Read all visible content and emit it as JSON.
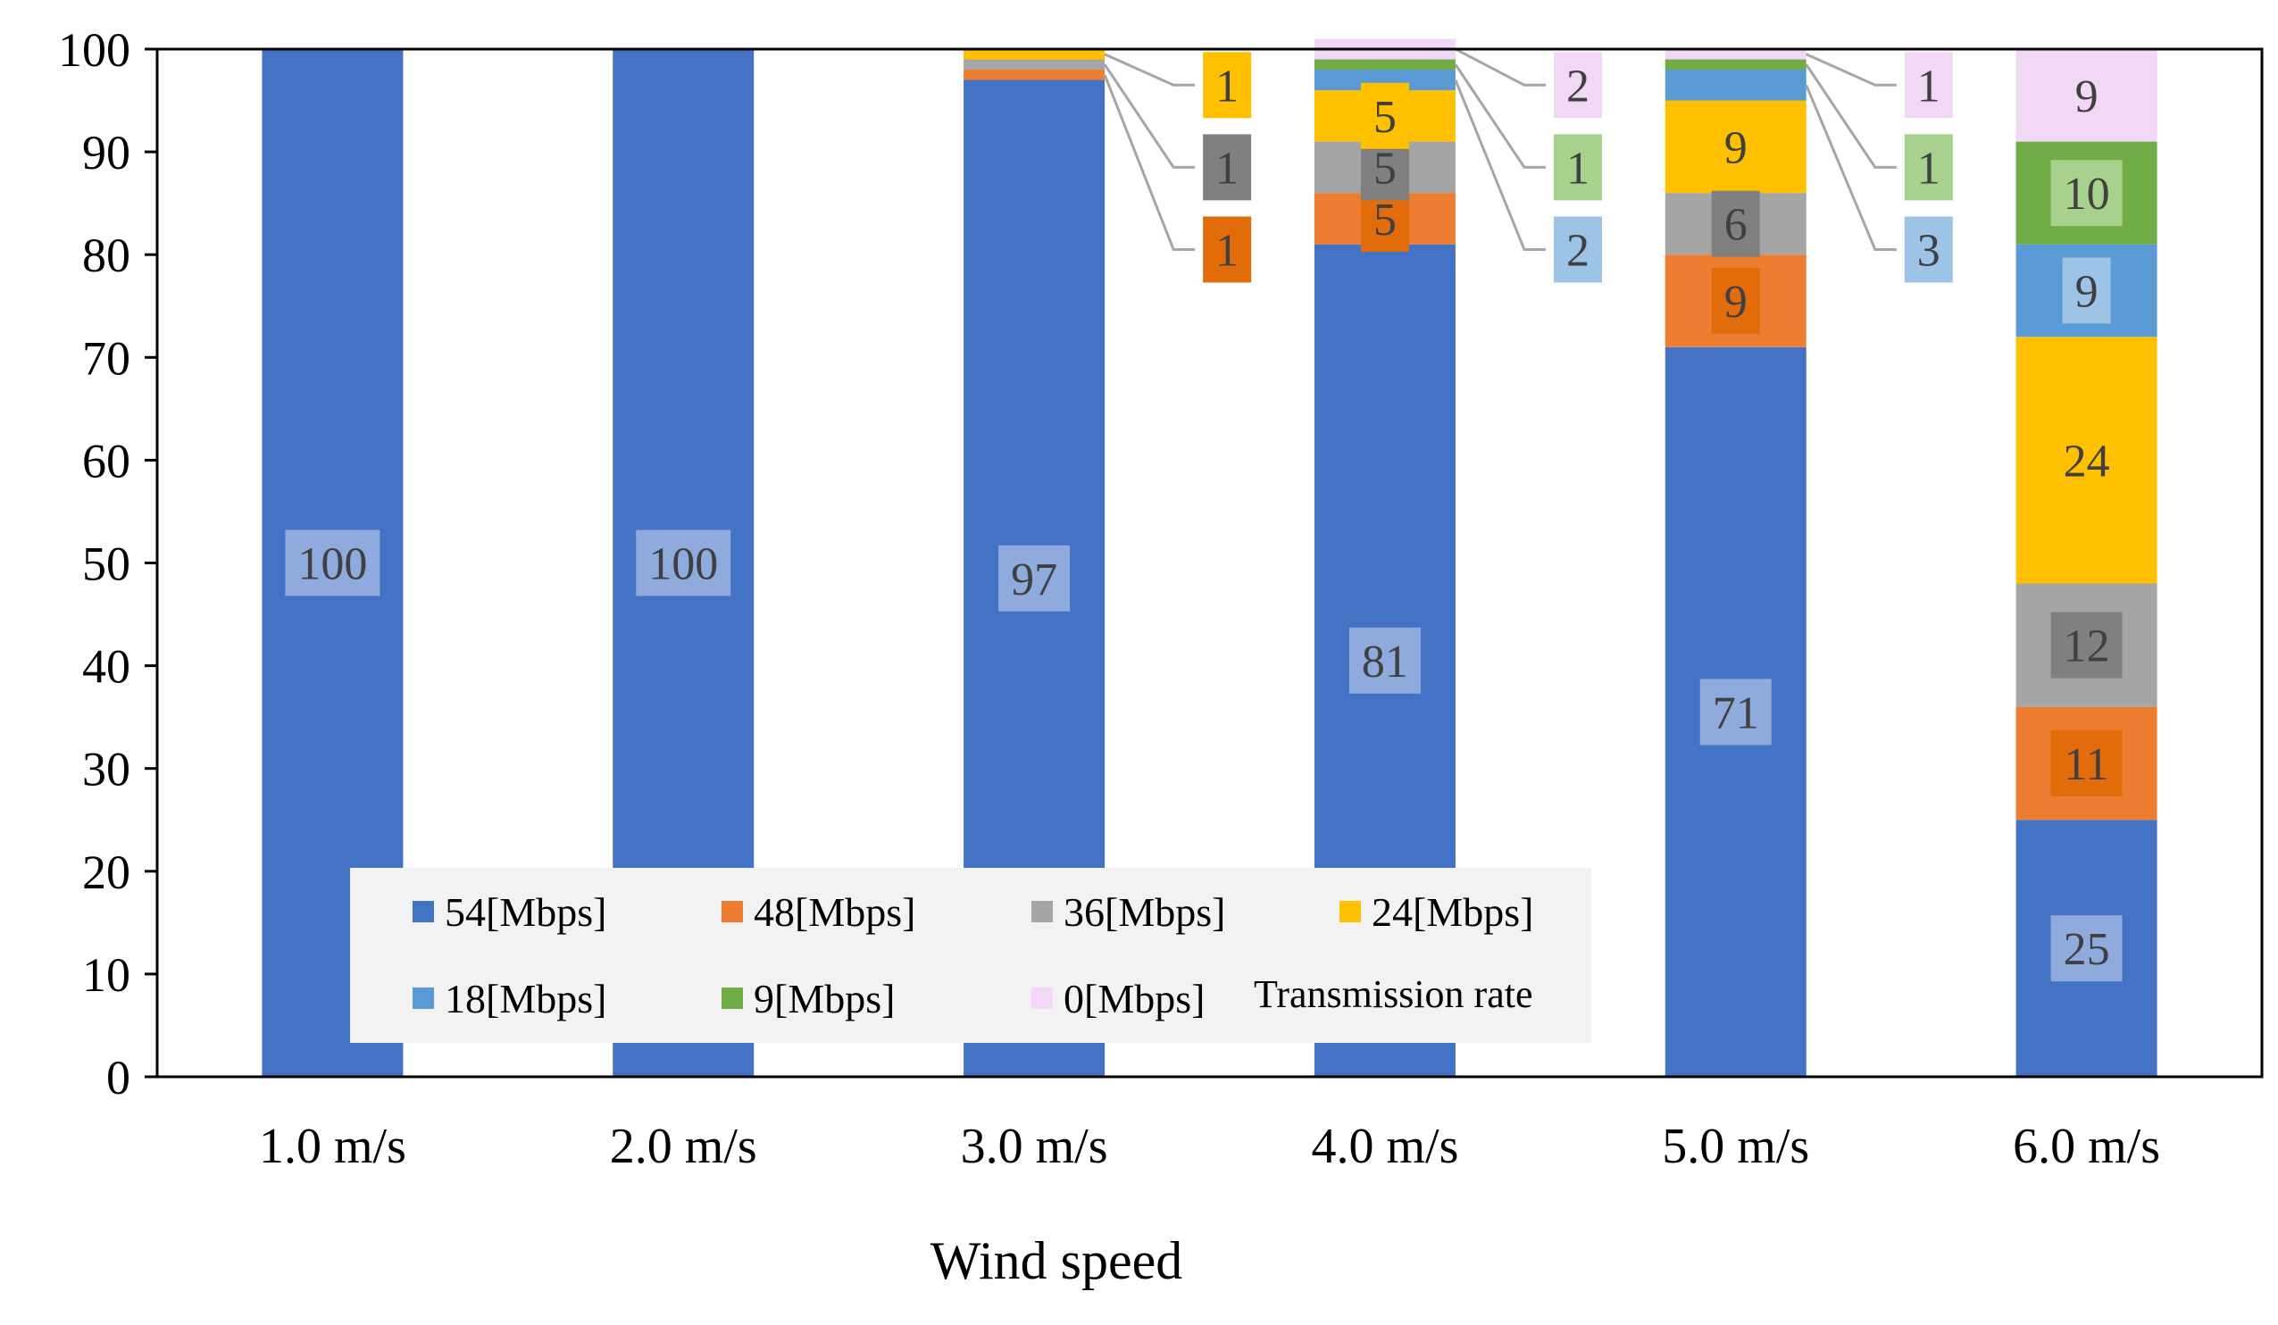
{
  "chart_data": {
    "type": "bar",
    "stacked": true,
    "title": "",
    "xlabel": "Wind speed",
    "ylabel": "",
    "ylim": [
      0,
      100
    ],
    "yticks": [
      0,
      10,
      20,
      30,
      40,
      50,
      60,
      70,
      80,
      90,
      100
    ],
    "categories": [
      "1.0 m/s",
      "2.0 m/s",
      "3.0 m/s",
      "4.0 m/s",
      "5.0 m/s",
      "6.0 m/s"
    ],
    "series": [
      {
        "name": "54[Mbps]",
        "color": "#4472C4",
        "label_bg": "#8FAADC",
        "label_color": "#404040",
        "values": [
          100,
          100,
          97,
          81,
          71,
          25
        ]
      },
      {
        "name": "48[Mbps]",
        "color": "#ED7D31",
        "label_bg": "#E26B0A",
        "label_color": "#404040",
        "values": [
          0,
          0,
          1,
          5,
          9,
          11
        ]
      },
      {
        "name": "36[Mbps]",
        "color": "#A5A5A5",
        "label_bg": "#808080",
        "label_color": "#404040",
        "values": [
          0,
          0,
          1,
          5,
          6,
          12
        ]
      },
      {
        "name": "24[Mbps]",
        "color": "#FFC000",
        "label_bg": "#FFC000",
        "label_color": "#404040",
        "values": [
          0,
          0,
          1,
          5,
          9,
          24
        ]
      },
      {
        "name": "18[Mbps]",
        "color": "#5B9BD5",
        "label_bg": "#9DC3E6",
        "label_color": "#404040",
        "values": [
          0,
          0,
          0,
          2,
          3,
          9
        ]
      },
      {
        "name": "9[Mbps]",
        "color": "#70AD47",
        "label_bg": "#A9D18E",
        "label_color": "#404040",
        "values": [
          0,
          0,
          0,
          1,
          1,
          10
        ]
      },
      {
        "name": "0[Mbps]",
        "color": "#F2D7F7",
        "label_bg": "#F2D7F7",
        "label_color": "#404040",
        "values": [
          0,
          0,
          0,
          2,
          1,
          9
        ]
      }
    ],
    "legend": {
      "placement": "bottom-left inside plot",
      "title": "Transmission rate",
      "background": "#F2F2F2"
    },
    "grid": false
  }
}
